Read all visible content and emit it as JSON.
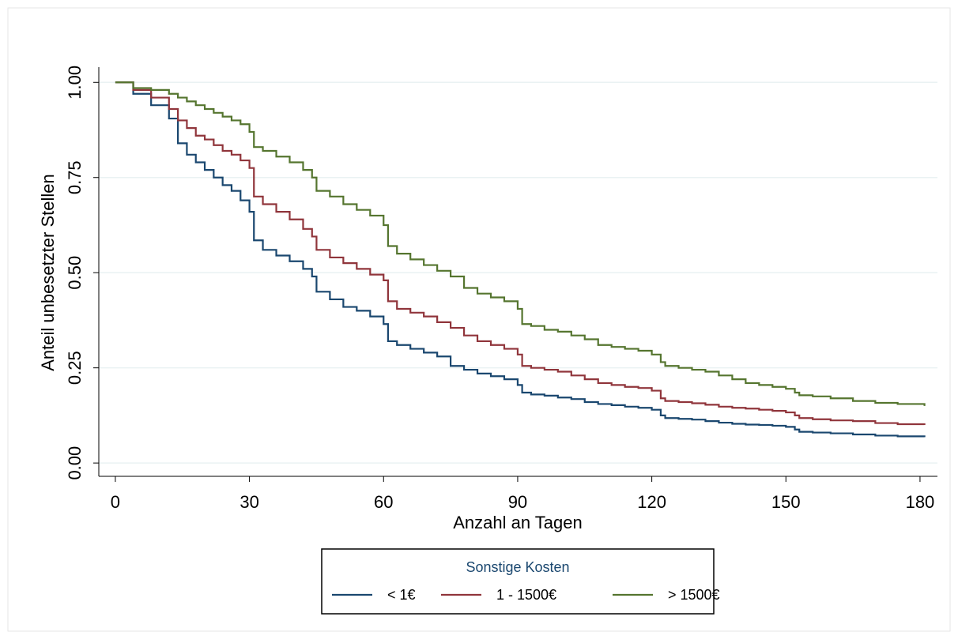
{
  "chart_data": {
    "type": "line",
    "step": true,
    "x_label": "Anzahl an Tagen",
    "y_label": "Anteil unbesetzter Stellen",
    "legend_title": "Sonstige Kosten",
    "legend_position": "bottom",
    "grid": true,
    "x": [
      0,
      4,
      8,
      12,
      14,
      16,
      18,
      20,
      22,
      24,
      26,
      28,
      30,
      31,
      33,
      36,
      39,
      42,
      44,
      45,
      48,
      51,
      54,
      57,
      60,
      61,
      63,
      66,
      69,
      72,
      75,
      78,
      81,
      84,
      87,
      90,
      91,
      93,
      96,
      99,
      102,
      105,
      108,
      111,
      114,
      117,
      120,
      122,
      123,
      126,
      129,
      132,
      135,
      138,
      141,
      144,
      147,
      150,
      152,
      153,
      156,
      160,
      165,
      170,
      175,
      181
    ],
    "series": [
      {
        "name": "< 1€",
        "color": "#1a476f",
        "values": [
          1.0,
          0.97,
          0.94,
          0.905,
          0.84,
          0.81,
          0.79,
          0.77,
          0.75,
          0.73,
          0.715,
          0.69,
          0.66,
          0.585,
          0.56,
          0.545,
          0.53,
          0.51,
          0.49,
          0.45,
          0.43,
          0.41,
          0.4,
          0.385,
          0.365,
          0.32,
          0.31,
          0.3,
          0.29,
          0.28,
          0.255,
          0.245,
          0.235,
          0.228,
          0.22,
          0.205,
          0.185,
          0.18,
          0.177,
          0.172,
          0.168,
          0.16,
          0.155,
          0.152,
          0.148,
          0.145,
          0.14,
          0.125,
          0.118,
          0.116,
          0.114,
          0.11,
          0.106,
          0.103,
          0.101,
          0.1,
          0.098,
          0.095,
          0.088,
          0.082,
          0.08,
          0.078,
          0.075,
          0.072,
          0.07,
          0.068
        ]
      },
      {
        "name": "1 - 1500€",
        "color": "#90353b",
        "values": [
          1.0,
          0.98,
          0.96,
          0.93,
          0.9,
          0.88,
          0.86,
          0.85,
          0.835,
          0.82,
          0.81,
          0.795,
          0.775,
          0.7,
          0.68,
          0.66,
          0.64,
          0.615,
          0.595,
          0.56,
          0.54,
          0.525,
          0.51,
          0.495,
          0.48,
          0.425,
          0.405,
          0.395,
          0.385,
          0.37,
          0.355,
          0.335,
          0.32,
          0.31,
          0.3,
          0.285,
          0.255,
          0.25,
          0.245,
          0.24,
          0.23,
          0.22,
          0.21,
          0.205,
          0.2,
          0.197,
          0.19,
          0.17,
          0.163,
          0.16,
          0.157,
          0.153,
          0.148,
          0.145,
          0.143,
          0.14,
          0.137,
          0.133,
          0.125,
          0.118,
          0.115,
          0.112,
          0.11,
          0.105,
          0.102,
          0.1
        ]
      },
      {
        "name": "> 1500€",
        "color": "#55752f",
        "values": [
          1.0,
          0.985,
          0.98,
          0.97,
          0.96,
          0.95,
          0.94,
          0.93,
          0.92,
          0.91,
          0.9,
          0.89,
          0.87,
          0.83,
          0.82,
          0.805,
          0.79,
          0.77,
          0.75,
          0.715,
          0.7,
          0.68,
          0.665,
          0.65,
          0.625,
          0.57,
          0.55,
          0.535,
          0.52,
          0.505,
          0.49,
          0.46,
          0.445,
          0.435,
          0.425,
          0.405,
          0.365,
          0.36,
          0.35,
          0.345,
          0.335,
          0.325,
          0.31,
          0.305,
          0.3,
          0.295,
          0.285,
          0.265,
          0.255,
          0.25,
          0.245,
          0.24,
          0.23,
          0.22,
          0.21,
          0.205,
          0.2,
          0.195,
          0.185,
          0.178,
          0.175,
          0.17,
          0.163,
          0.158,
          0.155,
          0.15
        ]
      }
    ],
    "xlim": [
      -3.7,
      183.9
    ],
    "xticks": [
      0,
      30,
      60,
      90,
      120,
      150,
      180
    ],
    "ylim": [
      -0.035,
      1.04
    ],
    "yticks": [
      {
        "value": 0,
        "label": "0.00"
      },
      {
        "value": 0.25,
        "label": "0.25"
      },
      {
        "value": 0.5,
        "label": "0.50"
      },
      {
        "value": 0.75,
        "label": "0.75"
      },
      {
        "value": 1,
        "label": "1.00"
      }
    ]
  }
}
